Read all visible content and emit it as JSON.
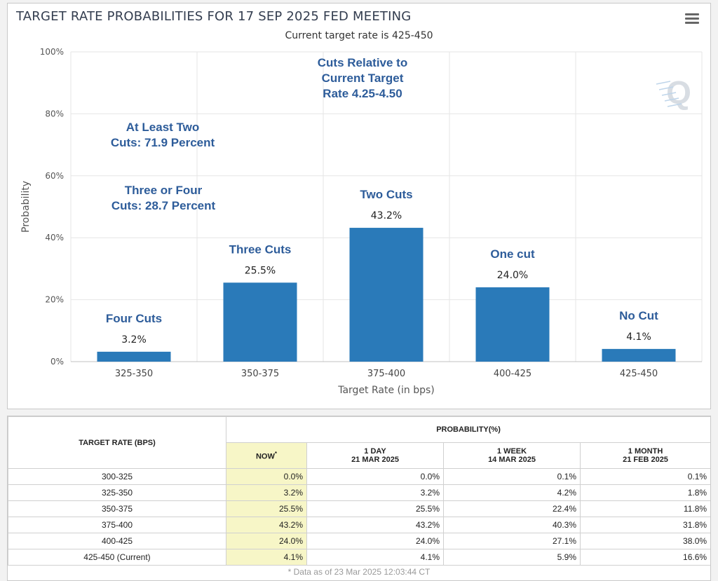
{
  "chart": {
    "title": "TARGET RATE PROBABILITIES FOR 17 SEP 2025 FED MEETING",
    "subtitle": "Current target rate is 425-450",
    "annotations": {
      "relative": "Cuts Relative to Current Target Rate 4.25-4.50",
      "atleast2": "At Least Two Cuts: 71.9 Percent",
      "three_four": "Three or Four Cuts: 28.7 Percent"
    },
    "watermark": "Q"
  },
  "chart_data": {
    "type": "bar",
    "title": "TARGET RATE PROBABILITIES FOR 17 SEP 2025 FED MEETING",
    "subtitle": "Current target rate is 425-450",
    "categories": [
      "325-350",
      "350-375",
      "375-400",
      "400-425",
      "425-450"
    ],
    "values": [
      3.2,
      25.5,
      43.2,
      24.0,
      4.1
    ],
    "value_labels": [
      "3.2%",
      "25.5%",
      "43.2%",
      "24.0%",
      "4.1%"
    ],
    "bar_labels": [
      "Four Cuts",
      "Three Cuts",
      "Two Cuts",
      "One cut",
      "No Cut"
    ],
    "xlabel": "Target Rate (in bps)",
    "ylabel": "Probability",
    "ylim": [
      0,
      100
    ],
    "yticks": [
      "0%",
      "20%",
      "40%",
      "60%",
      "80%",
      "100%"
    ],
    "grid": true,
    "bar_color": "#2a7ab9",
    "annotation_color": "#2d5c9a"
  },
  "table": {
    "head_rate": "TARGET RATE (BPS)",
    "head_prob": "PROBABILITY(%)",
    "cols": [
      {
        "l1": "NOW",
        "l2": "",
        "sup": "*"
      },
      {
        "l1": "1 DAY",
        "l2": "21 MAR 2025",
        "sup": ""
      },
      {
        "l1": "1 WEEK",
        "l2": "14 MAR 2025",
        "sup": ""
      },
      {
        "l1": "1 MONTH",
        "l2": "21 FEB 2025",
        "sup": ""
      }
    ],
    "rows": [
      {
        "rate": "300-325",
        "vals": [
          "0.0%",
          "0.0%",
          "0.1%",
          "0.1%"
        ]
      },
      {
        "rate": "325-350",
        "vals": [
          "3.2%",
          "3.2%",
          "4.2%",
          "1.8%"
        ]
      },
      {
        "rate": "350-375",
        "vals": [
          "25.5%",
          "25.5%",
          "22.4%",
          "11.8%"
        ]
      },
      {
        "rate": "375-400",
        "vals": [
          "43.2%",
          "43.2%",
          "40.3%",
          "31.8%"
        ]
      },
      {
        "rate": "400-425",
        "vals": [
          "24.0%",
          "24.0%",
          "27.1%",
          "38.0%"
        ]
      },
      {
        "rate": "425-450 (Current)",
        "vals": [
          "4.1%",
          "4.1%",
          "5.9%",
          "16.6%"
        ]
      }
    ],
    "footnote": "* Data as of 23 Mar 2025 12:03:44 CT"
  }
}
